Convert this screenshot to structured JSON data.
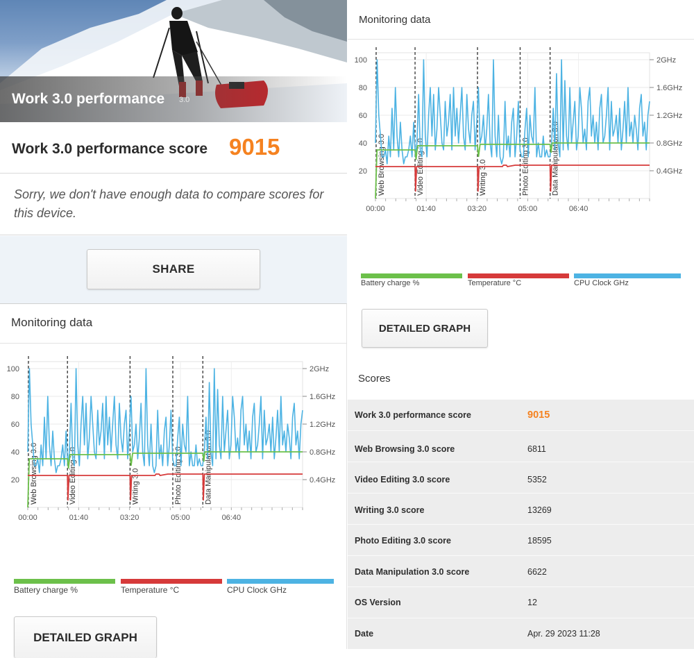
{
  "hero": {
    "title": "Work 3.0 performance",
    "version": "3.0"
  },
  "score": {
    "label": "Work 3.0 performance score",
    "value": "9015"
  },
  "compare_text": "Sorry, we don't have enough data to compare scores for this device.",
  "share_label": "SHARE",
  "monitoring": {
    "title": "Monitoring data",
    "detail_button": "DETAILED GRAPH",
    "legend": [
      {
        "label": "Battery charge %",
        "color": "#6cc04a"
      },
      {
        "label": "Temperature °C",
        "color": "#d63a3a"
      },
      {
        "label": "CPU Clock GHz",
        "color": "#4db3e3"
      }
    ]
  },
  "chart_data": [
    {
      "type": "line",
      "title": "",
      "x_ticks": [
        "00:00",
        "01:40",
        "03:20",
        "05:00",
        "06:40"
      ],
      "x_range_seconds": [
        0,
        540
      ],
      "y_left_ticks": [
        "20",
        "40",
        "60",
        "80",
        "100"
      ],
      "ylim_left": [
        0,
        105
      ],
      "y_right_ticks": [
        "0.4GHz",
        "0.8GHz",
        "1.2GHz",
        "1.6GHz",
        "2GHz"
      ],
      "ylim_right_ghz": [
        0,
        2.1
      ],
      "segments": [
        {
          "label": "Web Browsing 3.0",
          "start_seconds": 0
        },
        {
          "label": "Video Editing 3.0",
          "start_seconds": 78
        },
        {
          "label": "Writing 3.0",
          "start_seconds": 201
        },
        {
          "label": "Photo Editing 3.0",
          "start_seconds": 285
        },
        {
          "label": "Data Manipulation 3.0",
          "start_seconds": 344
        }
      ],
      "series": [
        {
          "name": "Battery charge %",
          "color": "#6cc04a",
          "axis": "left",
          "points": [
            [
              0,
              0
            ],
            [
              3,
              35
            ],
            [
              78,
              35
            ],
            [
              80,
              28
            ],
            [
              83,
              38
            ],
            [
              201,
              38
            ],
            [
              203,
              30
            ],
            [
              206,
              39
            ],
            [
              285,
              39
            ],
            [
              344,
              39
            ],
            [
              346,
              33
            ],
            [
              348,
              40
            ],
            [
              540,
              40
            ]
          ]
        },
        {
          "name": "Temperature °C",
          "color": "#d63a3a",
          "axis": "left",
          "points": [
            [
              0,
              23
            ],
            [
              78,
              23
            ],
            [
              79,
              5
            ],
            [
              81,
              23
            ],
            [
              201,
              23
            ],
            [
              202,
              5
            ],
            [
              204,
              23
            ],
            [
              250,
              23
            ],
            [
              252,
              24
            ],
            [
              258,
              24
            ],
            [
              260,
              23
            ],
            [
              275,
              24
            ],
            [
              285,
              24
            ],
            [
              344,
              24
            ],
            [
              345,
              5
            ],
            [
              347,
              24
            ],
            [
              540,
              24
            ]
          ]
        },
        {
          "name": "CPU Clock GHz",
          "color": "#4db3e3",
          "axis": "right",
          "values_ghz": [
            0.8,
            2.0,
            1.2,
            0.9,
            0.6,
            0.6,
            0.7,
            0.5,
            0.9,
            0.6,
            1.3,
            0.7,
            1.6,
            0.9,
            0.6,
            1.1,
            0.7,
            0.5,
            0.6,
            0.6,
            0.7,
            0.9,
            0.6,
            1.1,
            0.6,
            0.8,
            1.5,
            0.7,
            0.6,
            2.0,
            0.9,
            0.6,
            1.2,
            1.6,
            0.9,
            1.5,
            0.7,
            1.0,
            1.6,
            1.2,
            0.8,
            0.7,
            1.4,
            0.9,
            1.1,
            1.5,
            0.7,
            1.6,
            0.9,
            1.3,
            0.8,
            1.2,
            1.6,
            0.9,
            0.7,
            1.5,
            1.0,
            0.8,
            1.2,
            1.4,
            0.7,
            1.1,
            1.6,
            0.8,
            0.9,
            1.2,
            0.7,
            1.0,
            1.5,
            0.8,
            0.6,
            2.0,
            0.9,
            0.6,
            1.2,
            0.6,
            0.5,
            0.6,
            1.4,
            0.7,
            0.9,
            0.6,
            1.1,
            1.3,
            0.6,
            0.9,
            1.4,
            0.7,
            0.6,
            0.6,
            1.0,
            1.3,
            0.6,
            1.2,
            0.9,
            0.8,
            1.6,
            0.6,
            0.8,
            0.6,
            0.6,
            0.9,
            0.6,
            0.7,
            0.6,
            0.6,
            0.8,
            1.3,
            0.7,
            1.8,
            0.8,
            0.6,
            2.0,
            0.7,
            1.7,
            0.9,
            0.7,
            1.6,
            0.8,
            1.1,
            1.4,
            0.7,
            0.9,
            1.6,
            1.3,
            0.8,
            1.0,
            0.7,
            1.4,
            1.6,
            0.9,
            1.2,
            0.8,
            1.1,
            0.7,
            1.3,
            1.5,
            0.8,
            0.9,
            1.2,
            1.6,
            0.7,
            1.4,
            0.9,
            1.0,
            1.2,
            0.8,
            1.3,
            0.7,
            1.0,
            1.4,
            0.8,
            1.6,
            0.9,
            1.1,
            0.8,
            1.2,
            1.0,
            0.7,
            1.3,
            1.5,
            0.9,
            1.1,
            0.7,
            1.2,
            1.4
          ]
        }
      ]
    }
  ],
  "scores": {
    "title": "Scores",
    "rows": [
      {
        "label": "Work 3.0 performance score",
        "value": "9015",
        "highlight": true
      },
      {
        "label": "Web Browsing 3.0 score",
        "value": "6811"
      },
      {
        "label": "Video Editing 3.0 score",
        "value": "5352"
      },
      {
        "label": "Writing 3.0 score",
        "value": "13269"
      },
      {
        "label": "Photo Editing 3.0 score",
        "value": "18595"
      },
      {
        "label": "Data Manipulation 3.0 score",
        "value": "6622"
      },
      {
        "label": "OS Version",
        "value": "12"
      },
      {
        "label": "Date",
        "value": "Apr. 29 2023 11:28"
      }
    ]
  }
}
